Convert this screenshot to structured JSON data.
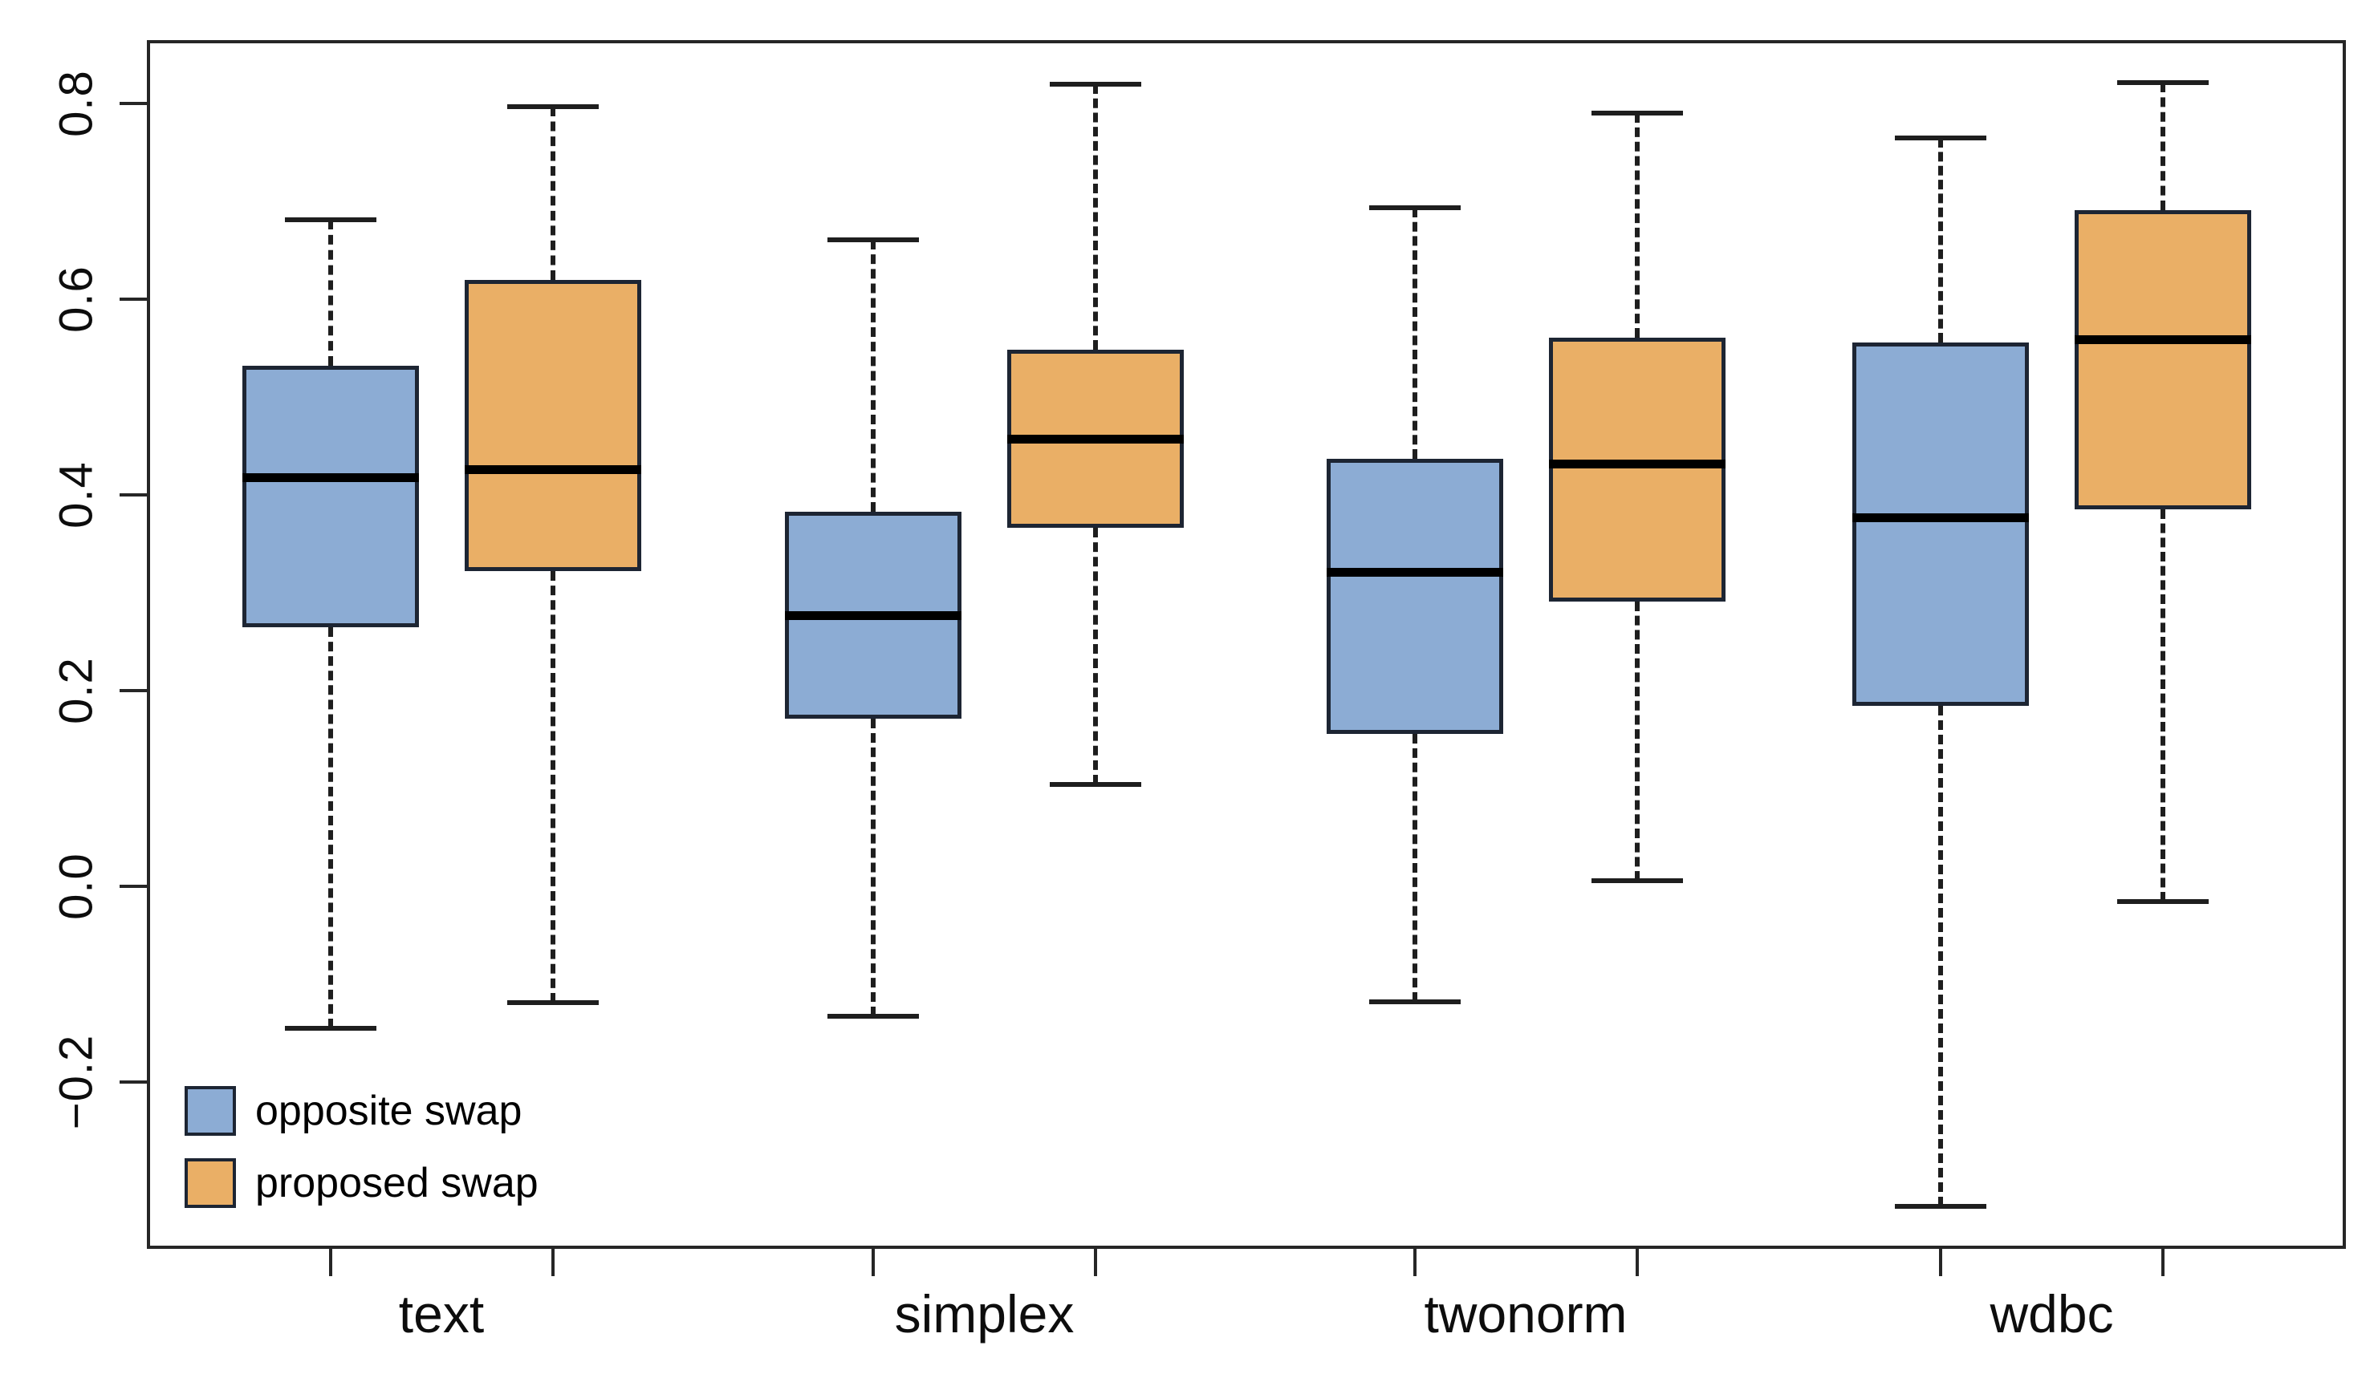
{
  "chart_data": {
    "type": "boxplot",
    "title": "",
    "xlabel": "",
    "ylabel": "",
    "categories": [
      "text",
      "simplex",
      "twonorm",
      "wdbc"
    ],
    "series": [
      {
        "name": "opposite swap",
        "color": "#8CACD4",
        "boxes": [
          {
            "category": "text",
            "whisker_low": -0.145,
            "q1": 0.265,
            "median": 0.418,
            "q3": 0.532,
            "whisker_high": 0.681
          },
          {
            "category": "simplex",
            "whisker_low": -0.133,
            "q1": 0.171,
            "median": 0.277,
            "q3": 0.383,
            "whisker_high": 0.661
          },
          {
            "category": "twonorm",
            "whisker_low": -0.118,
            "q1": 0.156,
            "median": 0.321,
            "q3": 0.437,
            "whisker_high": 0.693
          },
          {
            "category": "wdbc",
            "whisker_low": -0.327,
            "q1": 0.184,
            "median": 0.377,
            "q3": 0.556,
            "whisker_high": 0.765
          }
        ]
      },
      {
        "name": "proposed swap",
        "color": "#EAAF66",
        "boxes": [
          {
            "category": "text",
            "whisker_low": -0.119,
            "q1": 0.322,
            "median": 0.426,
            "q3": 0.62,
            "whisker_high": 0.797
          },
          {
            "category": "simplex",
            "whisker_low": 0.104,
            "q1": 0.366,
            "median": 0.457,
            "q3": 0.548,
            "whisker_high": 0.82
          },
          {
            "category": "twonorm",
            "whisker_low": 0.006,
            "q1": 0.291,
            "median": 0.432,
            "q3": 0.561,
            "whisker_high": 0.79
          },
          {
            "category": "wdbc",
            "whisker_low": -0.016,
            "q1": 0.385,
            "median": 0.559,
            "q3": 0.691,
            "whisker_high": 0.821
          }
        ]
      }
    ],
    "y_ticks": [
      0.8,
      0.6,
      0.4,
      0.2,
      0.0,
      -0.2
    ],
    "y_tick_labels": [
      "0.8",
      "0.6",
      "0.4",
      "0.2",
      "0.0",
      "−0.2"
    ],
    "ylim": [
      -0.3705,
      0.8647
    ],
    "grid": false,
    "legend_position": "bottom-left",
    "legend": [
      "opposite swap",
      "proposed swap"
    ],
    "colors": {
      "opposite_swap_fill": "#8CACD4",
      "proposed_swap_fill": "#EAAF66",
      "box_border": "#1D2533",
      "median_line": "#000000",
      "whisker": "#1E1E1E",
      "axis": "#262626",
      "background": "#FFFFFF"
    }
  }
}
